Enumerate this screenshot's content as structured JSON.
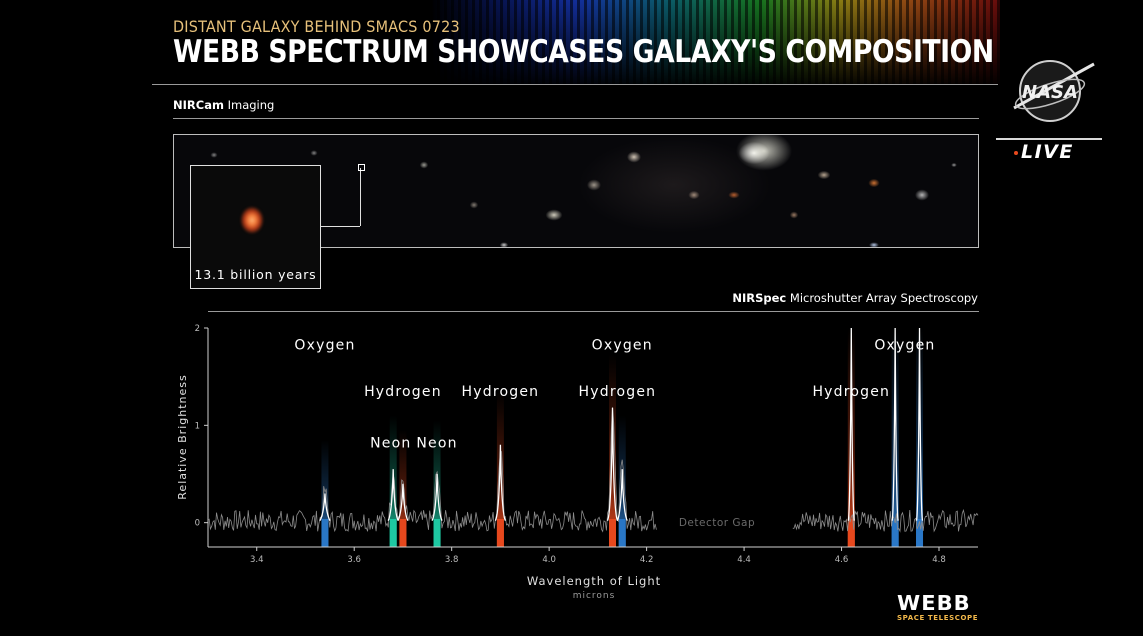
{
  "header": {
    "subtitle": "DISTANT GALAXY BEHIND SMACS 0723",
    "title": "WEBB SPECTRUM SHOWCASES GALAXY'S COMPOSITION"
  },
  "imaging": {
    "instrument": "NIRCam",
    "mode": "Imaging",
    "inset_label": "13.1 billion years"
  },
  "spectroscopy": {
    "instrument": "NIRSpec",
    "mode": "Microshutter Array Spectroscopy"
  },
  "branding": {
    "nasa_logo_text": "NASA",
    "live_label": "LIVE",
    "webb_label": "WEBB",
    "webb_sub": "SPACE TELESCOPE",
    "accent_orange": "#e8491d",
    "gold": "#f2b84a"
  },
  "chart_data": {
    "type": "line",
    "xlabel": "Wavelength of Light",
    "xunit": "microns",
    "ylabel": "Relative Brightness",
    "xlim": [
      3.3,
      4.88
    ],
    "ylim": [
      -0.25,
      2
    ],
    "xticks": [
      3.4,
      3.6,
      3.8,
      4.0,
      4.2,
      4.4,
      4.6,
      4.8
    ],
    "yticks": [
      0,
      1,
      2
    ],
    "gap_label": "Detector Gap",
    "detector_gap": [
      4.22,
      4.5
    ],
    "emission_lines": [
      {
        "element": "Oxygen",
        "wavelength": 3.54,
        "peak": 0.3,
        "color": "#2a78c8"
      },
      {
        "element": "Neon",
        "wavelength": 3.68,
        "peak": 0.55,
        "color": "#1fc9a3"
      },
      {
        "element": "Hydrogen",
        "wavelength": 3.7,
        "peak": 0.4,
        "color": "#e8491d"
      },
      {
        "element": "Neon",
        "wavelength": 3.77,
        "peak": 0.5,
        "color": "#1fc9a3"
      },
      {
        "element": "Hydrogen",
        "wavelength": 3.9,
        "peak": 0.8,
        "color": "#e8491d"
      },
      {
        "element": "Hydrogen",
        "wavelength": 4.13,
        "peak": 1.18,
        "color": "#e8491d"
      },
      {
        "element": "Oxygen",
        "wavelength": 4.15,
        "peak": 0.55,
        "color": "#2a78c8"
      },
      {
        "element": "Hydrogen",
        "wavelength": 4.62,
        "peak": 2.0,
        "color": "#e8491d"
      },
      {
        "element": "Oxygen",
        "wavelength": 4.71,
        "peak": 2.0,
        "color": "#2a78c8"
      },
      {
        "element": "Oxygen",
        "wavelength": 4.76,
        "peak": 2.0,
        "color": "#2a78c8"
      }
    ],
    "labels": [
      {
        "text": "Oxygen",
        "x": 3.54,
        "y": 1.78
      },
      {
        "text": "Hydrogen",
        "x": 3.7,
        "y": 1.3
      },
      {
        "text": "Hydrogen",
        "x": 3.9,
        "y": 1.3
      },
      {
        "text": "Neon",
        "x": 3.675,
        "y": 0.77
      },
      {
        "text": "Neon",
        "x": 3.77,
        "y": 0.77
      },
      {
        "text": "Oxygen",
        "x": 4.15,
        "y": 1.78
      },
      {
        "text": "Hydrogen",
        "x": 4.14,
        "y": 1.3
      },
      {
        "text": "Hydrogen",
        "x": 4.62,
        "y": 1.3
      },
      {
        "text": "Oxygen",
        "x": 4.73,
        "y": 1.78
      }
    ]
  }
}
